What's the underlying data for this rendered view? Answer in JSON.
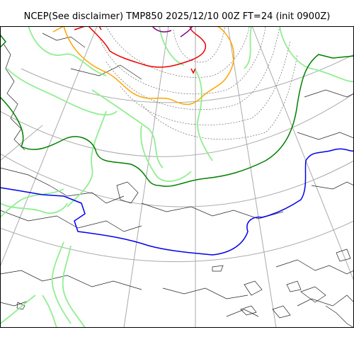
{
  "title": "NCEP(See disclaimer) TMP850 2025/12/10 00Z FT=24 (init 0900Z)",
  "colors": {
    "background": "#ffffff",
    "frame": "#000000",
    "coastline": "#222222",
    "graticule": "#aaaaaa",
    "isotherm_thin": "#555555",
    "isotherm_light_green": "#90ee90",
    "isotherm_green": "#008000",
    "isotherm_blue": "#0000ee",
    "isotherm_orange": "#ffa500",
    "isotherm_red": "#ee0000",
    "isotherm_purple": "#8b008b"
  },
  "map": {
    "projection": "polar stereographic",
    "field": "850 hPa temperature",
    "contour_styles": [
      "solid colored isotherms",
      "dotted fine isotherms",
      "coastlines",
      "lat/lon graticule"
    ]
  }
}
